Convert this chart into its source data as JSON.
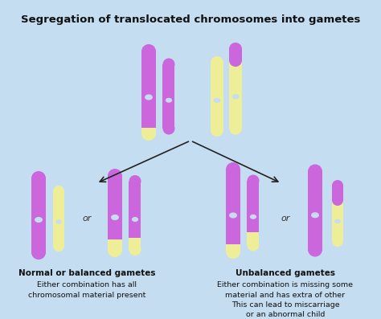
{
  "title": "Segregation of translocated chromosomes into gametes",
  "title_fontsize": 9.5,
  "bg_color_top": "#c5ddf0",
  "bg_color_bot": "#b5cee0",
  "purple": "#cc66dd",
  "yellow": "#eeee99",
  "label_left_bold": "Normal or balanced gametes",
  "label_left_text": "Either combination has all\nchromosomal material present",
  "label_right_bold": "Unbalanced gametes",
  "label_right_text": "Either combination is missing some\nmaterial and has extra of other\nThis can lead to miscarriage\nor an abnormal child",
  "or_fontsize": 8,
  "label_bold_fontsize": 7.5,
  "label_text_fontsize": 6.8,
  "arrow_color": "#222222"
}
